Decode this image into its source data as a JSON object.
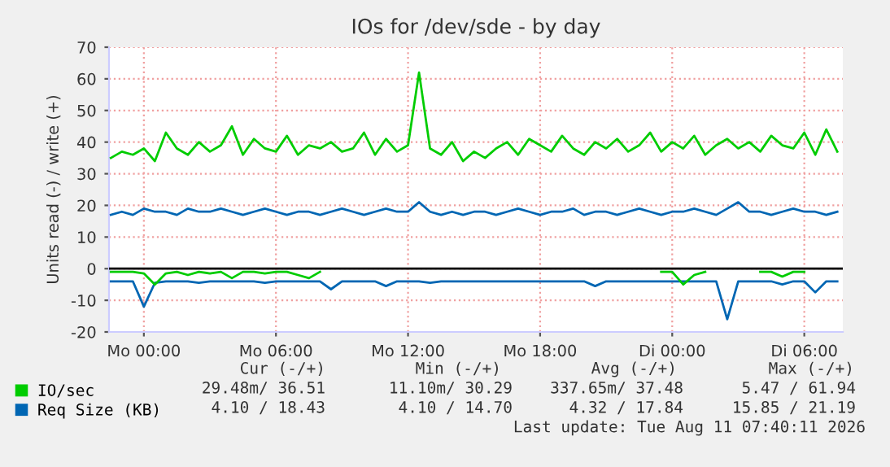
{
  "chart_data": {
    "type": "line",
    "title": "IOs for /dev/sde - by day",
    "ylabel": "Units read (-) / write (+)",
    "x": [
      "2026-08-09T22:30",
      "2026-08-09T23:00",
      "2026-08-09T23:30",
      "2026-08-10T00:00",
      "2026-08-10T00:30",
      "2026-08-10T01:00",
      "2026-08-10T01:30",
      "2026-08-10T02:00",
      "2026-08-10T02:30",
      "2026-08-10T03:00",
      "2026-08-10T03:30",
      "2026-08-10T04:00",
      "2026-08-10T04:30",
      "2026-08-10T05:00",
      "2026-08-10T05:30",
      "2026-08-10T06:00",
      "2026-08-10T06:30",
      "2026-08-10T07:00",
      "2026-08-10T07:30",
      "2026-08-10T08:00",
      "2026-08-10T08:30",
      "2026-08-10T09:00",
      "2026-08-10T09:30",
      "2026-08-10T10:00",
      "2026-08-10T10:30",
      "2026-08-10T11:00",
      "2026-08-10T11:30",
      "2026-08-10T12:00",
      "2026-08-10T12:30",
      "2026-08-10T13:00",
      "2026-08-10T13:30",
      "2026-08-10T14:00",
      "2026-08-10T14:30",
      "2026-08-10T15:00",
      "2026-08-10T15:30",
      "2026-08-10T16:00",
      "2026-08-10T16:30",
      "2026-08-10T17:00",
      "2026-08-10T17:30",
      "2026-08-10T18:00",
      "2026-08-10T18:30",
      "2026-08-10T19:00",
      "2026-08-10T19:30",
      "2026-08-10T20:00",
      "2026-08-10T20:30",
      "2026-08-10T21:00",
      "2026-08-10T21:30",
      "2026-08-10T22:00",
      "2026-08-10T22:30",
      "2026-08-10T23:00",
      "2026-08-10T23:30",
      "2026-08-11T00:00",
      "2026-08-11T00:30",
      "2026-08-11T01:00",
      "2026-08-11T01:30",
      "2026-08-11T02:00",
      "2026-08-11T02:30",
      "2026-08-11T03:00",
      "2026-08-11T03:30",
      "2026-08-11T04:00",
      "2026-08-11T04:30",
      "2026-08-11T05:00",
      "2026-08-11T05:30",
      "2026-08-11T06:00",
      "2026-08-11T06:30",
      "2026-08-11T07:00",
      "2026-08-11T07:30"
    ],
    "series": [
      {
        "name": "IO/sec",
        "color": "#00cc00",
        "values": [
          35,
          37,
          36,
          38,
          34,
          43,
          38,
          36,
          40,
          37,
          39,
          45,
          36,
          41,
          38,
          37,
          42,
          36,
          39,
          38,
          40,
          37,
          38,
          43,
          36,
          41,
          37,
          39,
          62,
          38,
          36,
          40,
          34,
          37,
          35,
          38,
          40,
          36,
          41,
          39,
          37,
          42,
          38,
          36,
          40,
          38,
          41,
          37,
          39,
          43,
          37,
          40,
          38,
          42,
          36,
          39,
          41,
          38,
          40,
          37,
          42,
          39,
          38,
          43,
          36,
          44,
          37
        ]
      },
      {
        "color": "#00cc00",
        "values": [
          -1,
          -1,
          -1,
          -1.5,
          -5,
          -1.5,
          -1,
          -2,
          -1,
          -1.5,
          -1,
          -3,
          -1,
          -1,
          -1.5,
          -1,
          -1,
          -2,
          -3,
          -1,
          null,
          null,
          null,
          null,
          null,
          null,
          null,
          null,
          null,
          null,
          null,
          null,
          null,
          null,
          null,
          null,
          null,
          null,
          null,
          null,
          null,
          null,
          null,
          null,
          null,
          null,
          null,
          null,
          null,
          null,
          -1,
          -1,
          -5,
          -2,
          -1,
          null,
          null,
          null,
          null,
          -1,
          -1,
          -2.5,
          -1,
          -1,
          null,
          null,
          null
        ]
      },
      {
        "name": "Req Size (KB)",
        "color": "#0066b3",
        "values": [
          17,
          18,
          17,
          19,
          18,
          18,
          17,
          19,
          18,
          18,
          19,
          18,
          17,
          18,
          19,
          18,
          17,
          18,
          18,
          17,
          18,
          19,
          18,
          17,
          18,
          19,
          18,
          18,
          21,
          18,
          17,
          18,
          17,
          18,
          18,
          17,
          18,
          19,
          18,
          17,
          18,
          18,
          19,
          17,
          18,
          18,
          17,
          18,
          19,
          18,
          17,
          18,
          18,
          19,
          18,
          17,
          19,
          21,
          18,
          18,
          17,
          18,
          19,
          18,
          18,
          17,
          18
        ]
      },
      {
        "color": "#0066b3",
        "values": [
          -4,
          -4,
          -4,
          -12,
          -4.5,
          -4,
          -4,
          -4,
          -4.5,
          -4,
          -4,
          -4,
          -4,
          -4,
          -4.5,
          -4,
          -4,
          -4,
          -4,
          -4,
          -6.5,
          -4,
          -4,
          -4,
          -4,
          -5.5,
          -4,
          -4,
          -4,
          -4.5,
          -4,
          -4,
          -4,
          -4,
          -4,
          -4,
          -4,
          -4,
          -4,
          -4,
          -4,
          -4,
          -4,
          -4,
          -5.5,
          -4,
          -4,
          -4,
          -4,
          -4,
          -4,
          -4,
          -4,
          -4,
          -4,
          -4,
          -16,
          -4,
          -4,
          -4,
          -4,
          -5,
          -4,
          -4,
          -7.5,
          -4,
          -4
        ]
      }
    ],
    "xlim": [
      "2026-08-09T22:25",
      "2026-08-11T07:45"
    ],
    "xticks": [
      {
        "value": "2026-08-10T00:00",
        "label": "Mo 00:00"
      },
      {
        "value": "2026-08-10T06:00",
        "label": "Mo 06:00"
      },
      {
        "value": "2026-08-10T12:00",
        "label": "Mo 12:00"
      },
      {
        "value": "2026-08-10T18:00",
        "label": "Mo 18:00"
      },
      {
        "value": "2026-08-11T00:00",
        "label": "Di 00:00"
      },
      {
        "value": "2026-08-11T06:00",
        "label": "Di 06:00"
      }
    ],
    "ylim": [
      -20,
      70
    ],
    "yticks": [
      -20,
      -10,
      0,
      10,
      20,
      30,
      40,
      50,
      60,
      70
    ],
    "grid": true,
    "legend": "bottom left",
    "marker": "none",
    "line_style": "solid",
    "ref_lines": [
      {
        "axis": "y",
        "value": 0,
        "color": "#000000"
      }
    ],
    "annotations": [
      "Cur (-/+)",
      "Min (-/+)",
      "Avg (-/+)",
      "Max (-/+)",
      "29.48m/ 36.51",
      "11.10m/ 30.29",
      "337.65m/ 37.48",
      "5.47 / 61.94",
      "4.10 / 18.43",
      "4.10 / 14.70",
      "4.32 / 17.84",
      "15.85 / 21.19",
      "Last update: Tue Aug 11 07:40:11 2026"
    ]
  }
}
